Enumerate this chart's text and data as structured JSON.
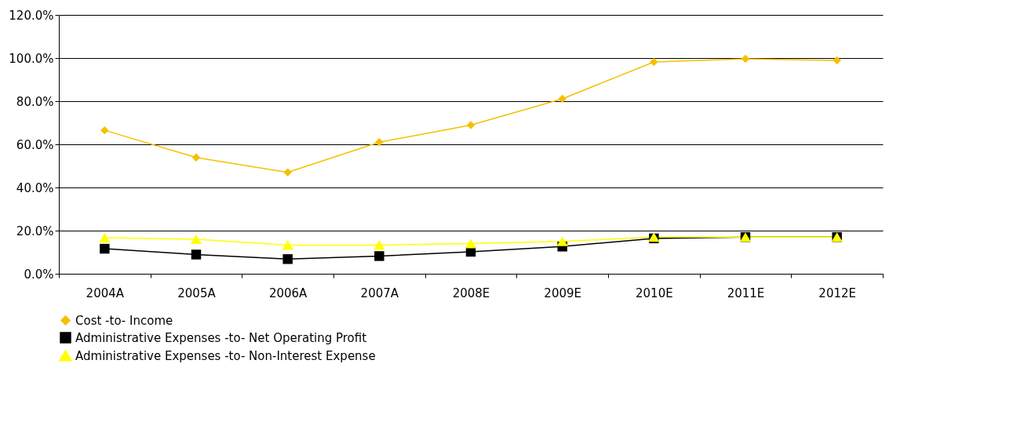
{
  "chart_data": {
    "type": "line",
    "categories": [
      "2004A",
      "2005A",
      "2006A",
      "2007A",
      "2008E",
      "2009E",
      "2010E",
      "2011E",
      "2012E"
    ],
    "series": [
      {
        "name": "Cost -to- Income",
        "color": "#f5c000",
        "marker": "diamond",
        "values": [
          66.5,
          53.9,
          47.0,
          61.0,
          68.9,
          81.1,
          98.2,
          99.6,
          98.9
        ]
      },
      {
        "name": "Administrative Expenses -to- Net Operating Profit",
        "color": "#000000",
        "marker": "square",
        "values": [
          11.6,
          8.9,
          6.8,
          8.2,
          10.2,
          12.6,
          16.4,
          17.0,
          17.0
        ]
      },
      {
        "name": "Administrative Expenses -to- Non-Interest Expense",
        "color": "#ffff00",
        "marker": "triangle",
        "values": [
          16.7,
          16.0,
          13.3,
          13.3,
          14.0,
          15.0,
          17.0,
          17.0,
          17.0
        ]
      }
    ],
    "ylim": [
      0,
      120
    ],
    "yticks": [
      {
        "value": 0,
        "label": "0.0%"
      },
      {
        "value": 20,
        "label": "20.0%"
      },
      {
        "value": 40,
        "label": "40.0%"
      },
      {
        "value": 60,
        "label": "60.0%"
      },
      {
        "value": 80,
        "label": "80.0%"
      },
      {
        "value": 100,
        "label": "100.0%"
      },
      {
        "value": 120,
        "label": "120.0%"
      }
    ],
    "grid": "y",
    "legend": "bottom",
    "line_style": "solid"
  }
}
